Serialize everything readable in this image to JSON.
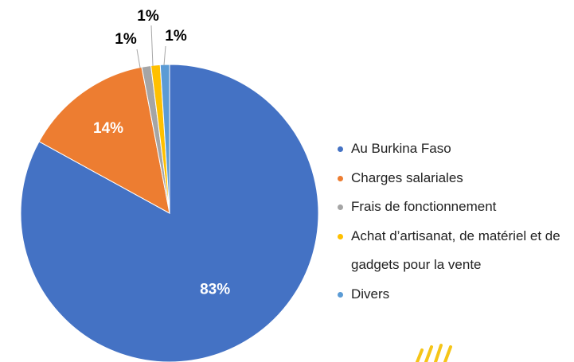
{
  "chart_data": {
    "type": "pie",
    "categories": [
      "Au Burkina Faso",
      "Charges salariales",
      "Frais de fonctionnement",
      "Achat d’artisanat, de matériel et de gadgets pour la vente",
      "Divers"
    ],
    "values": [
      83,
      14,
      1,
      1,
      1
    ],
    "value_labels": [
      "83%",
      "14%",
      "1%",
      "1%",
      "1%"
    ],
    "colors": [
      "#4472c4",
      "#ed7d31",
      "#a5a5a5",
      "#ffc000",
      "#5b9bd5"
    ]
  }
}
